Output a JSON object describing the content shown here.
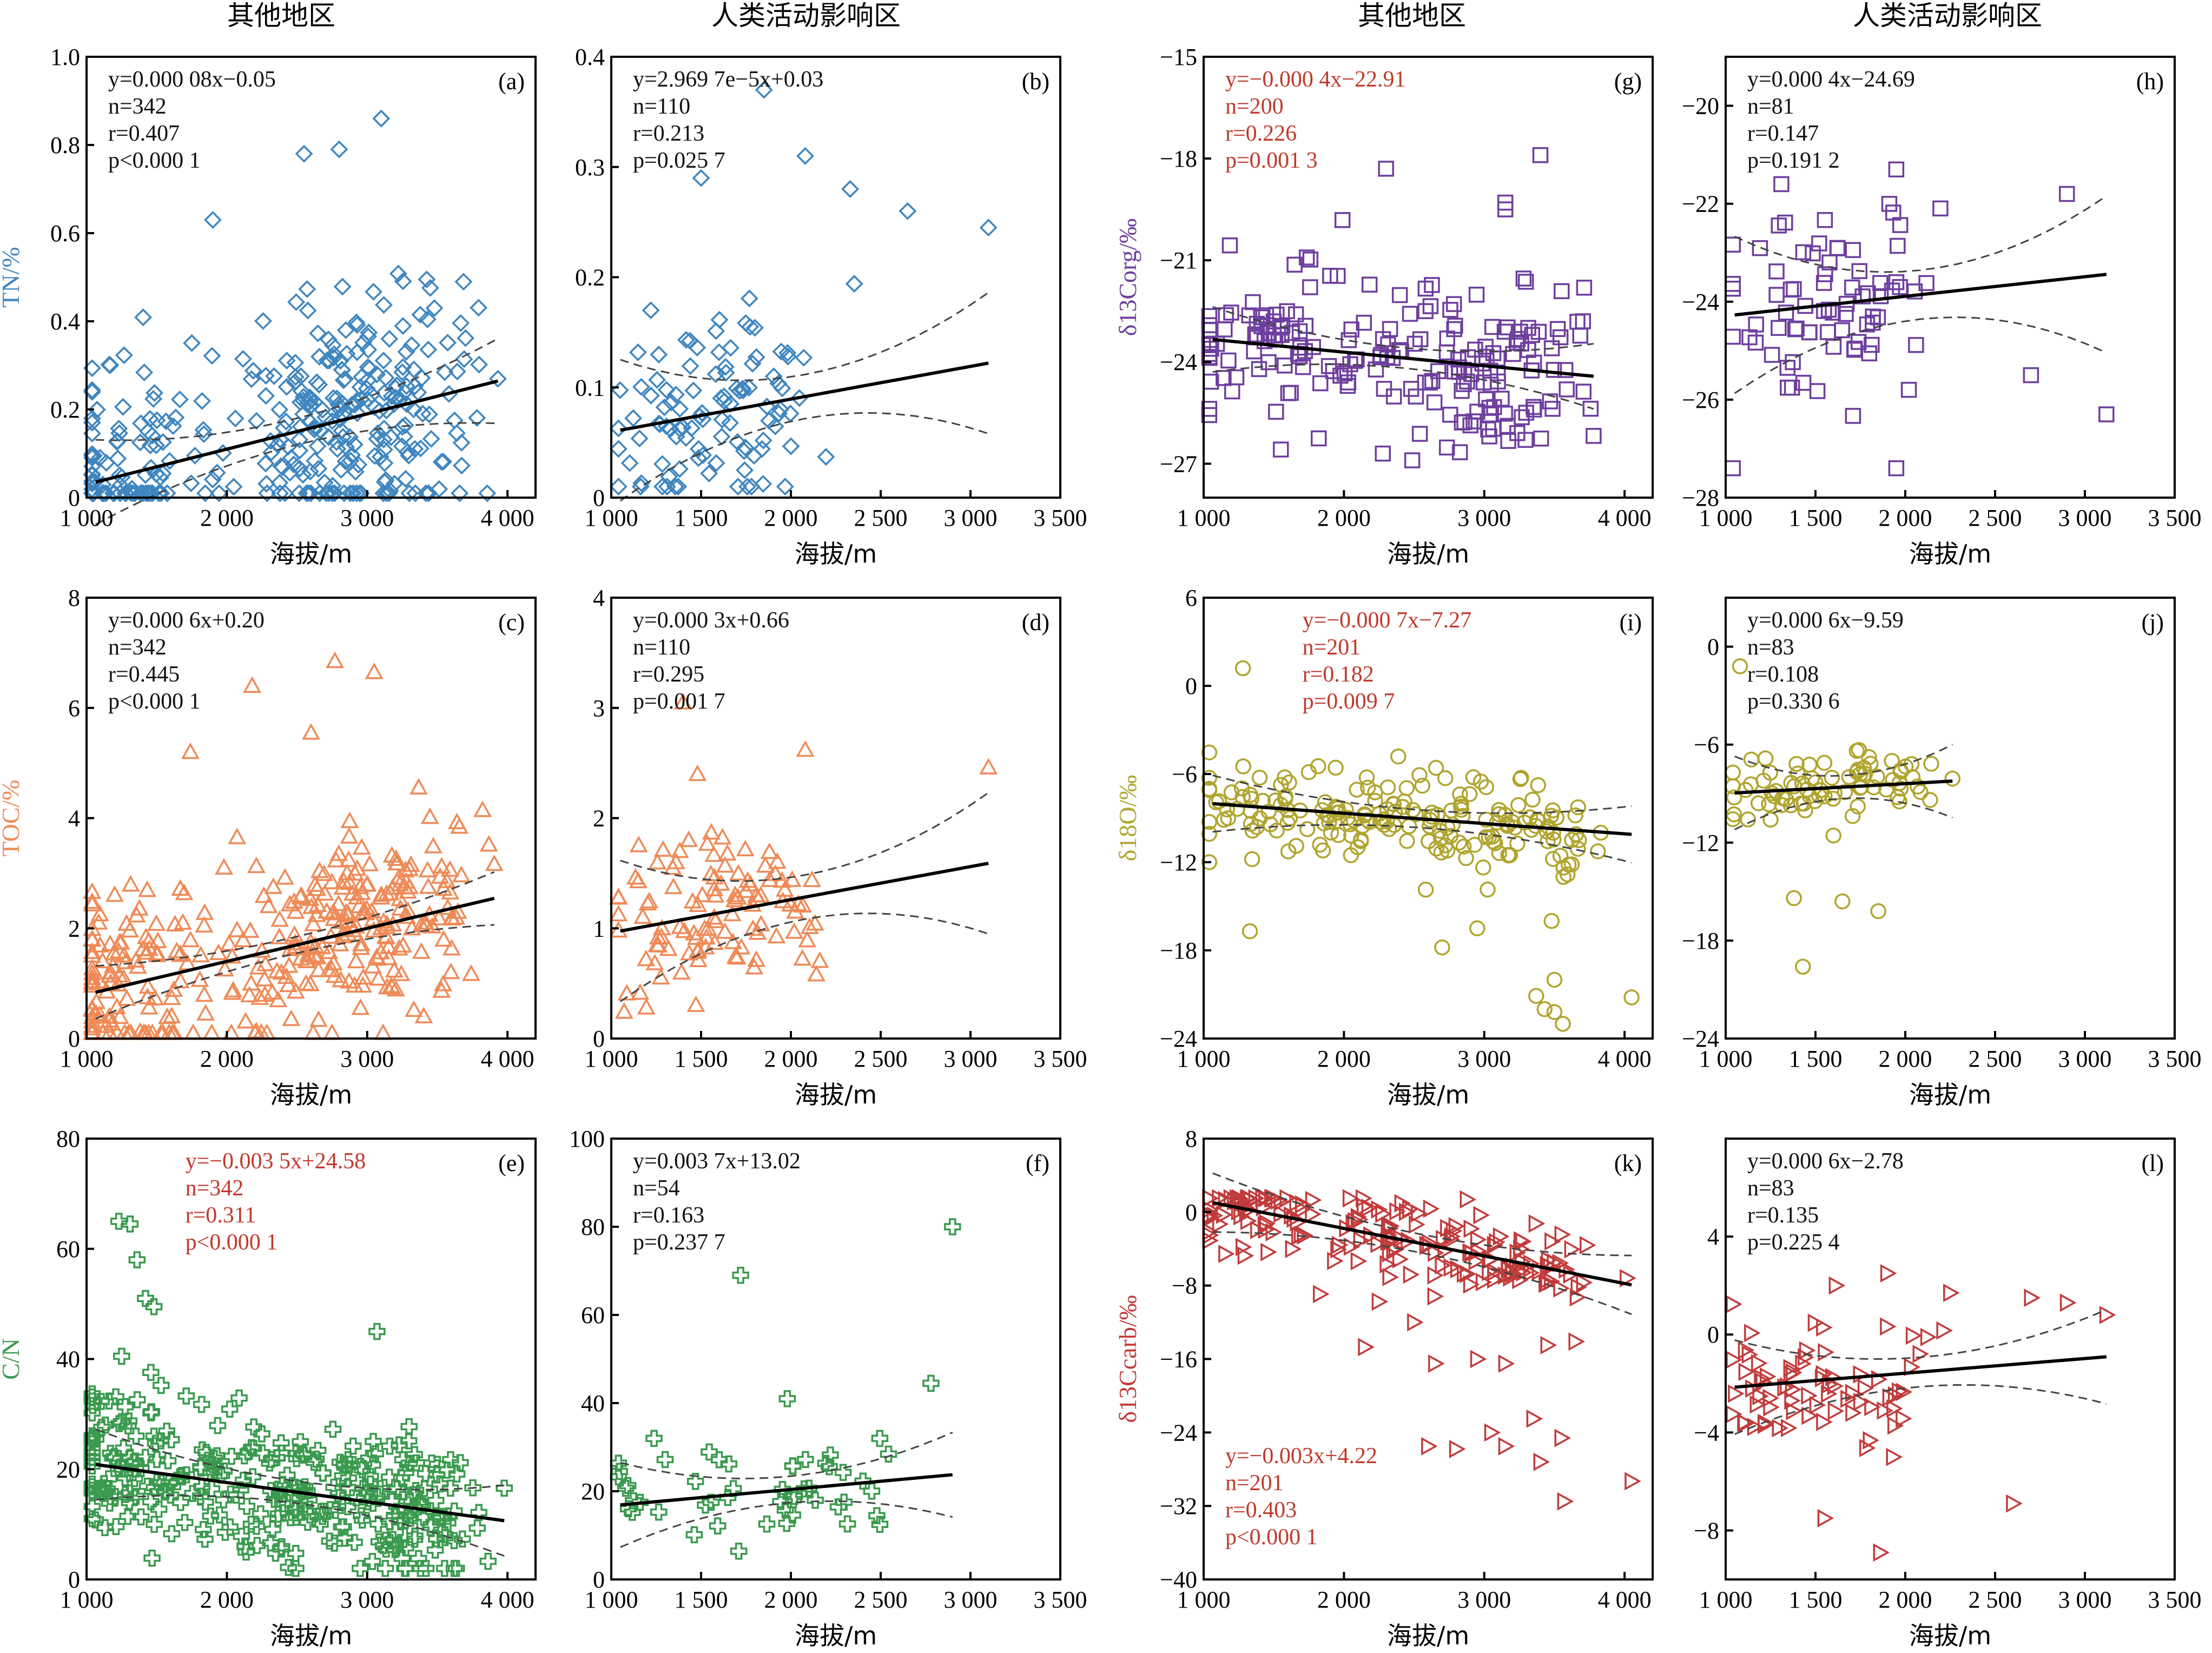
{
  "column_titles": [
    "其他地区",
    "人类活动影响区",
    "其他地区",
    "人类活动影响区"
  ],
  "x_axis_label": "海拔/m",
  "colors": {
    "TN": "#3f86c0",
    "TOC": "#ef8a57",
    "CN": "#3a9a4e",
    "C13org": "#6e3f9e",
    "O18": "#b0a52e",
    "C13carb": "#c23b3b",
    "highlight_text": "#c0392b",
    "default_text": "#111111"
  },
  "chart_data": [
    {
      "id": "a",
      "panel_label": "(a)",
      "type": "scatter",
      "marker": "diamond",
      "color_key": "TN",
      "ylabel": "TN/%",
      "xlim": [
        1000,
        4200
      ],
      "ylim": [
        0,
        1.0
      ],
      "xticks": [
        1000,
        2000,
        3000,
        4000
      ],
      "xtick_labels": [
        "1 000",
        "2 000",
        "3 000",
        "4 000"
      ],
      "yticks": [
        0,
        0.2,
        0.4,
        0.6,
        0.8,
        1.0
      ],
      "ytick_labels": [
        "0",
        "0.2",
        "0.4",
        "0.6",
        "0.8",
        "1.0"
      ],
      "stats": [
        "y=0.000 08x−0.05",
        "n=342",
        "r=0.407",
        "p<0.000 1"
      ],
      "stats_red": false,
      "stats_pos": "top-left",
      "fit": {
        "slope": 8e-05,
        "intercept": -0.05,
        "ci": 0.03
      },
      "n": 342,
      "cluster": {
        "centers": [
          1300,
          2600,
          3150
        ],
        "spread": 300,
        "sd": 0.13,
        "min": 0.01,
        "max": 0.87
      },
      "extra_points": [
        [
          3100,
          0.86
        ],
        [
          2800,
          0.79
        ],
        [
          2550,
          0.78
        ],
        [
          1900,
          0.63
        ]
      ]
    },
    {
      "id": "b",
      "panel_label": "(b)",
      "type": "scatter",
      "marker": "diamond",
      "color_key": "TN",
      "ylabel": "",
      "xlim": [
        1000,
        3500
      ],
      "ylim": [
        0,
        0.4
      ],
      "xticks": [
        1000,
        1500,
        2000,
        2500,
        3000,
        3500
      ],
      "xtick_labels": [
        "1 000",
        "1 500",
        "2 000",
        "2 500",
        "3 000",
        "3 500"
      ],
      "yticks": [
        0,
        0.1,
        0.2,
        0.3,
        0.4
      ],
      "ytick_labels": [
        "0",
        "0.1",
        "0.2",
        "0.3",
        "0.4"
      ],
      "stats": [
        "y=2.969 7e−5x+0.03",
        "n=110",
        "r=0.213",
        "p=0.025 7"
      ],
      "stats_red": false,
      "stats_pos": "top-left",
      "fit": {
        "slope": 2.9697e-05,
        "intercept": 0.03,
        "ci": 0.02
      },
      "n": 110,
      "cluster": {
        "centers": [
          1350,
          1700
        ],
        "spread": 220,
        "sd": 0.045,
        "min": 0.01,
        "max": 0.37
      },
      "extra_points": [
        [
          1850,
          0.37
        ],
        [
          2080,
          0.31
        ],
        [
          1500,
          0.29
        ],
        [
          2330,
          0.28
        ],
        [
          3100,
          0.245
        ],
        [
          2650,
          0.26
        ]
      ]
    },
    {
      "id": "c",
      "panel_label": "(c)",
      "type": "scatter",
      "marker": "triangle",
      "color_key": "TOC",
      "ylabel": "TOC/%",
      "xlim": [
        1000,
        4200
      ],
      "ylim": [
        0,
        8
      ],
      "xticks": [
        1000,
        2000,
        3000,
        4000
      ],
      "xtick_labels": [
        "1 000",
        "2 000",
        "3 000",
        "4 000"
      ],
      "yticks": [
        0,
        2,
        4,
        6,
        8
      ],
      "ytick_labels": [
        "0",
        "2",
        "4",
        "6",
        "8"
      ],
      "stats": [
        "y=0.000 6x+0.20",
        "n=342",
        "r=0.445",
        "p<0.000 1"
      ],
      "stats_red": false,
      "stats_pos": "top-left",
      "fit": {
        "slope": 0.0006,
        "intercept": 0.2,
        "ci": 0.15
      },
      "n": 342,
      "cluster": {
        "centers": [
          1300,
          2600,
          3200
        ],
        "spread": 320,
        "sd": 0.8,
        "min": 0.1,
        "max": 6.9
      },
      "extra_points": [
        [
          2770,
          6.85
        ],
        [
          3050,
          6.65
        ],
        [
          2180,
          6.4
        ],
        [
          2600,
          5.55
        ],
        [
          1740,
          5.2
        ]
      ]
    },
    {
      "id": "d",
      "panel_label": "(d)",
      "type": "scatter",
      "marker": "triangle",
      "color_key": "TOC",
      "ylabel": "",
      "xlim": [
        1000,
        3500
      ],
      "ylim": [
        0,
        4
      ],
      "xticks": [
        1000,
        1500,
        2000,
        2500,
        3000,
        3500
      ],
      "xtick_labels": [
        "1 000",
        "1 500",
        "2 000",
        "2 500",
        "3 000",
        "3 500"
      ],
      "yticks": [
        0,
        1,
        2,
        3,
        4
      ],
      "ytick_labels": [
        "0",
        "1",
        "2",
        "3",
        "4"
      ],
      "stats": [
        "y=0.000 3x+0.66",
        "n=110",
        "r=0.295",
        "p=0.001 7"
      ],
      "stats_red": false,
      "stats_pos": "top-left",
      "fit": {
        "slope": 0.0003,
        "intercept": 0.66,
        "ci": 0.2
      },
      "n": 110,
      "cluster": {
        "centers": [
          1350,
          1750
        ],
        "spread": 240,
        "sd": 0.4,
        "min": 0.15,
        "max": 3.1
      },
      "extra_points": [
        [
          1400,
          3.05
        ],
        [
          2080,
          2.62
        ],
        [
          3100,
          2.46
        ],
        [
          1480,
          2.4
        ]
      ]
    },
    {
      "id": "e",
      "panel_label": "(e)",
      "type": "scatter",
      "marker": "cross",
      "color_key": "CN",
      "ylabel": "C/N",
      "xlim": [
        1000,
        4200
      ],
      "ylim": [
        0,
        80
      ],
      "xticks": [
        1000,
        2000,
        3000,
        4000
      ],
      "xtick_labels": [
        "1 000",
        "2 000",
        "3 000",
        "4 000"
      ],
      "yticks": [
        0,
        20,
        40,
        60,
        80
      ],
      "ytick_labels": [
        "0",
        "20",
        "40",
        "60",
        "80"
      ],
      "stats": [
        "y=−0.003 5x+24.58",
        "n=342",
        "r=0.311",
        "p<0.000 1"
      ],
      "stats_red": true,
      "stats_pos": "top-center",
      "fit": {
        "slope": -0.0035,
        "intercept": 24.58,
        "ci": 2
      },
      "n": 342,
      "cluster": {
        "centers": [
          1300,
          2400,
          3200
        ],
        "spread": 330,
        "sd": 6.5,
        "min": 2,
        "max": 66
      },
      "extra_points": [
        [
          1230,
          65
        ],
        [
          1310,
          64.5
        ],
        [
          1360,
          58
        ],
        [
          1420,
          51
        ],
        [
          1480,
          49.5
        ],
        [
          1250,
          40.5
        ],
        [
          3070,
          45
        ]
      ]
    },
    {
      "id": "f",
      "panel_label": "(f)",
      "type": "scatter",
      "marker": "cross",
      "color_key": "CN",
      "ylabel": "",
      "xlim": [
        1000,
        3500
      ],
      "ylim": [
        0,
        100
      ],
      "xticks": [
        1000,
        1500,
        2000,
        2500,
        3000,
        3500
      ],
      "xtick_labels": [
        "1 000",
        "1 500",
        "2 000",
        "2 500",
        "3 000",
        "3 500"
      ],
      "yticks": [
        0,
        20,
        40,
        60,
        80,
        100
      ],
      "ytick_labels": [
        "0",
        "20",
        "40",
        "60",
        "80",
        "100"
      ],
      "stats": [
        "y=0.003 7x+13.02",
        "n=54",
        "r=0.163",
        "p=0.237 7"
      ],
      "stats_red": false,
      "stats_pos": "top-left",
      "fit": {
        "slope": 0.0037,
        "intercept": 13.02,
        "ci": 3
      },
      "n": 54,
      "cluster": {
        "centers": [
          1300,
          2200
        ],
        "spread": 300,
        "sd": 6,
        "min": 4,
        "max": 32
      },
      "extra_points": [
        [
          2900,
          80
        ],
        [
          1720,
          69
        ],
        [
          2780,
          44.5
        ],
        [
          1980,
          41
        ]
      ]
    },
    {
      "id": "g",
      "panel_label": "(g)",
      "type": "scatter",
      "marker": "square",
      "color_key": "C13org",
      "ylabel": "δ13Corg/‰",
      "xlim": [
        1000,
        4200
      ],
      "ylim": [
        -28,
        -15
      ],
      "xticks": [
        1000,
        2000,
        3000,
        4000
      ],
      "xtick_labels": [
        "1 000",
        "2 000",
        "3 000",
        "4 000"
      ],
      "yticks": [
        -27,
        -24,
        -21,
        -18,
        -15
      ],
      "ytick_labels": [
        "−27",
        "−24",
        "−21",
        "−18",
        "−15"
      ],
      "stats": [
        "y=−0.000 4x−22.91",
        "n=200",
        "r=0.226",
        "p=0.001 3"
      ],
      "stats_red": true,
      "stats_pos": "top-left",
      "fit": {
        "slope": -0.0004,
        "intercept": -22.91,
        "ci": 0.3
      },
      "n": 200,
      "cluster": {
        "centers": [
          1400,
          2600,
          3300
        ],
        "spread": 350,
        "sd": 1.2,
        "min": -26.9,
        "max": -19.2
      },
      "extra_points": [
        [
          3400,
          -17.9
        ],
        [
          2300,
          -18.3
        ],
        [
          3150,
          -19.5
        ],
        [
          3150,
          -19.3
        ]
      ]
    },
    {
      "id": "h",
      "panel_label": "(h)",
      "type": "scatter",
      "marker": "square",
      "color_key": "C13org",
      "ylabel": "",
      "xlim": [
        1000,
        3500
      ],
      "ylim": [
        -28,
        -19
      ],
      "xticks": [
        1000,
        1500,
        2000,
        2500,
        3000,
        3500
      ],
      "xtick_labels": [
        "1 000",
        "1 500",
        "2 000",
        "2 500",
        "3 000",
        "3 500"
      ],
      "yticks": [
        -28,
        -26,
        -24,
        -22,
        -20
      ],
      "ytick_labels": [
        "−28",
        "−26",
        "−24",
        "−22",
        "−20"
      ],
      "stats": [
        "y=0.000 4x−24.69",
        "n=81",
        "r=0.147",
        "p=0.191 2"
      ],
      "stats_red": false,
      "stats_pos": "top-left",
      "fit": {
        "slope": 0.0004,
        "intercept": -24.69,
        "ci": 0.5
      },
      "n": 81,
      "cluster": {
        "centers": [
          1350,
          1800
        ],
        "spread": 250,
        "sd": 1.0,
        "min": -27.4,
        "max": -21.3
      },
      "extra_points": [
        [
          1950,
          -27.4
        ],
        [
          3120,
          -26.3
        ],
        [
          2700,
          -25.5
        ],
        [
          1310,
          -21.6
        ],
        [
          1950,
          -21.3
        ],
        [
          2900,
          -21.8
        ]
      ]
    },
    {
      "id": "i",
      "panel_label": "(i)",
      "type": "scatter",
      "marker": "circle",
      "color_key": "O18",
      "ylabel": "δ18O/‰",
      "xlim": [
        1000,
        4200
      ],
      "ylim": [
        -24,
        6
      ],
      "xticks": [
        1000,
        2000,
        3000,
        4000
      ],
      "xtick_labels": [
        "1 000",
        "2 000",
        "3 000",
        "4 000"
      ],
      "yticks": [
        -24,
        -18,
        -12,
        -6,
        0,
        6
      ],
      "ytick_labels": [
        "−24",
        "−18",
        "−12",
        "−6",
        "0",
        "6"
      ],
      "stats": [
        "y=−0.000 7x−7.27",
        "n=201",
        "r=0.182",
        "p=0.009 7"
      ],
      "stats_red": true,
      "stats_pos": "top-center",
      "fit": {
        "slope": -0.0007,
        "intercept": -7.27,
        "ci": 0.6
      },
      "n": 201,
      "cluster": {
        "centers": [
          1400,
          2300,
          3250
        ],
        "spread": 340,
        "sd": 1.6,
        "min": -14,
        "max": -4
      },
      "extra_points": [
        [
          1280,
          1.2
        ],
        [
          3500,
          -22.2
        ],
        [
          3560,
          -23.0
        ],
        [
          3430,
          -22.0
        ],
        [
          3370,
          -21.1
        ],
        [
          4050,
          -21.2
        ],
        [
          3500,
          -20.0
        ],
        [
          1330,
          -16.7
        ],
        [
          2700,
          -17.8
        ],
        [
          2950,
          -16.5
        ],
        [
          3480,
          -16.0
        ]
      ]
    },
    {
      "id": "j",
      "panel_label": "(j)",
      "type": "scatter",
      "marker": "circle",
      "color_key": "O18",
      "ylabel": "",
      "xlim": [
        1000,
        3500
      ],
      "ylim": [
        -24,
        3
      ],
      "xticks": [
        1000,
        1500,
        2000,
        2500,
        3000,
        3500
      ],
      "xtick_labels": [
        "1 000",
        "1 500",
        "2 000",
        "2 500",
        "3 000",
        "3 500"
      ],
      "yticks": [
        -24,
        -18,
        -12,
        -6,
        0
      ],
      "ytick_labels": [
        "−24",
        "−18",
        "−12",
        "−6",
        "0"
      ],
      "stats": [
        "y=0.000 6x−9.59",
        "n=83",
        "r=0.108",
        "p=0.330 6"
      ],
      "stats_red": false,
      "stats_pos": "top-left",
      "fit": {
        "slope": 0.0006,
        "intercept": -9.59,
        "ci": 0.7
      },
      "n": 83,
      "cluster": {
        "centers": [
          1350,
          1800
        ],
        "spread": 250,
        "sd": 1.1,
        "min": -12.5,
        "max": -4.5
      },
      "extra_points": [
        [
          1430,
          -19.6
        ],
        [
          1380,
          -15.4
        ],
        [
          1650,
          -15.6
        ],
        [
          1850,
          -16.2
        ],
        [
          1080,
          -1.2
        ]
      ]
    },
    {
      "id": "k",
      "panel_label": "(k)",
      "type": "scatter",
      "marker": "tri-right",
      "color_key": "C13carb",
      "ylabel": "δ13Ccarb/‰",
      "xlim": [
        1000,
        4200
      ],
      "ylim": [
        -40,
        8
      ],
      "xticks": [
        1000,
        2000,
        3000,
        4000
      ],
      "xtick_labels": [
        "1 000",
        "2 000",
        "3 000",
        "4 000"
      ],
      "yticks": [
        -40,
        -32,
        -24,
        -16,
        -8,
        0,
        8
      ],
      "ytick_labels": [
        "−40",
        "−32",
        "−24",
        "−16",
        "−8",
        "0",
        "8"
      ],
      "stats": [
        "y=−0.003x+4.22",
        "n=201",
        "r=0.403",
        "p<0.000 1"
      ],
      "stats_red": true,
      "stats_pos": "bottom-left",
      "fit": {
        "slope": -0.003,
        "intercept": 4.22,
        "ci": 1.0
      },
      "n": 201,
      "cluster": {
        "centers": [
          1400,
          2400,
          3200
        ],
        "spread": 330,
        "sd": 2.2,
        "min": -10,
        "max": 1.5
      },
      "extra_points": [
        [
          3570,
          -31.5
        ],
        [
          4050,
          -29.3
        ],
        [
          3400,
          -27.2
        ],
        [
          3150,
          -25.5
        ],
        [
          3550,
          -24.6
        ],
        [
          2600,
          -25.5
        ],
        [
          2800,
          -25.8
        ],
        [
          2650,
          -16.5
        ],
        [
          2950,
          -16.0
        ],
        [
          3150,
          -16.5
        ],
        [
          2150,
          -14.7
        ],
        [
          2500,
          -12.0
        ],
        [
          3650,
          -14.1
        ],
        [
          3450,
          -14.5
        ],
        [
          3350,
          -22.5
        ],
        [
          3050,
          -24.0
        ]
      ]
    },
    {
      "id": "l",
      "panel_label": "(l)",
      "type": "scatter",
      "marker": "tri-right",
      "color_key": "C13carb",
      "ylabel": "",
      "xlim": [
        1000,
        3500
      ],
      "ylim": [
        -10,
        8
      ],
      "xticks": [
        1000,
        1500,
        2000,
        2500,
        3000,
        3500
      ],
      "xtick_labels": [
        "1 000",
        "1 500",
        "2 000",
        "2 500",
        "3 000",
        "3 500"
      ],
      "yticks": [
        -8,
        -4,
        0,
        4
      ],
      "ytick_labels": [
        "−8",
        "−4",
        "0",
        "4"
      ],
      "stats": [
        "y=0.000 6x−2.78",
        "n=83",
        "r=0.135",
        "p=0.225 4"
      ],
      "stats_red": false,
      "stats_pos": "top-left",
      "fit": {
        "slope": 0.0006,
        "intercept": -2.78,
        "ci": 0.6
      },
      "n": 83,
      "cluster": {
        "centers": [
          1350,
          1800
        ],
        "spread": 260,
        "sd": 1.3,
        "min": -5,
        "max": 2
      },
      "extra_points": [
        [
          1860,
          -8.9
        ],
        [
          2600,
          -6.9
        ],
        [
          1550,
          -7.5
        ],
        [
          1900,
          2.5
        ],
        [
          2250,
          1.7
        ],
        [
          2700,
          1.5
        ],
        [
          3120,
          0.8
        ],
        [
          2900,
          1.3
        ]
      ]
    }
  ]
}
